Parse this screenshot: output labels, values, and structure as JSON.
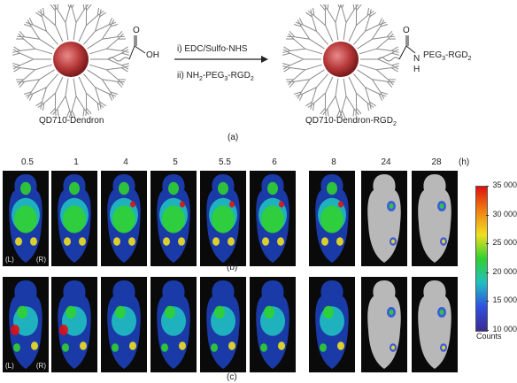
{
  "panel_a": {
    "left_label": "QD710-Dendron",
    "right_label": "QD710-Dendron-RGD",
    "right_label_sub": "2",
    "oh": "OH",
    "o_left": "O",
    "o_right": "O",
    "nh_n": "N",
    "nh_h": "H",
    "peg_text": "PEG",
    "peg_sub": "3",
    "peg_rgd": "-RGD",
    "peg_rgd_sub": "2",
    "step1": "i) EDC/Sulfo-NHS",
    "step2_pre": "ii) NH",
    "step2_sub1": "2",
    "step2_mid": "-PEG",
    "step2_sub2": "3",
    "step2_rgd": "-RGD",
    "step2_sub3": "2",
    "caption": "(a)"
  },
  "time_points": [
    "0.5",
    "1",
    "4",
    "5",
    "5.5",
    "6",
    "8",
    "24",
    "28"
  ],
  "time_unit": "(h)",
  "panel_b": {
    "caption": "(b)",
    "left": "(L)",
    "right": "(R)"
  },
  "panel_c": {
    "caption": "(c)",
    "left": "(L)",
    "right": "(R)"
  },
  "colorbar": {
    "ticks": [
      "35 000",
      "30 000",
      "25 000",
      "20 000",
      "15 000",
      "10 000"
    ],
    "title": "Counts",
    "colors": [
      "#e01010",
      "#f08010",
      "#f0e020",
      "#30d030",
      "#20c0c0",
      "#3050e0",
      "#3a2a90"
    ]
  }
}
